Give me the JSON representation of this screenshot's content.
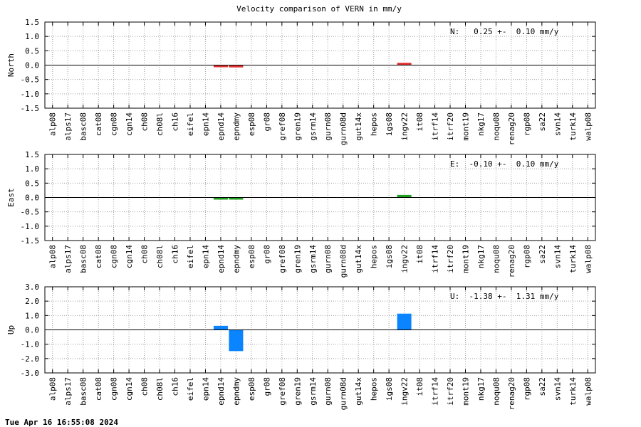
{
  "chart_data": {
    "type": "bar",
    "title": "Velocity comparison of VERN in mm/y",
    "categories": [
      "alp08",
      "alps17",
      "basc08",
      "cat08",
      "cgn08",
      "cgn14",
      "ch08",
      "ch08l",
      "ch16",
      "eifel",
      "epn14",
      "epnd14",
      "epndmy",
      "esp08",
      "gr08",
      "gref08",
      "gren19",
      "gsrm14",
      "gurn08",
      "gurn08d",
      "gut14x",
      "hepos",
      "igs08",
      "ingv22",
      "it08",
      "itrf14",
      "itrf20",
      "mont19",
      "nkg17",
      "noqu08",
      "renag20",
      "rgp08",
      "sa22",
      "svn14",
      "turk14",
      "walp08"
    ],
    "panels": [
      {
        "ylabel": "North",
        "color": "#e03030",
        "ylim": [
          -1.5,
          1.5
        ],
        "yticks": [
          "1.5",
          "1.0",
          "0.5",
          "0.0",
          "-0.5",
          "-1.0",
          "-1.5"
        ],
        "stat_text": "N:   0.25 +-  0.10 mm/y",
        "values": {
          "epnd14": -0.03,
          "epndmy": -0.08,
          "ingv22": 0.08
        }
      },
      {
        "ylabel": "East",
        "color": "#20a020",
        "ylim": [
          -1.5,
          1.5
        ],
        "yticks": [
          "1.5",
          "1.0",
          "0.5",
          "0.0",
          "-0.5",
          "-1.0",
          "-1.5"
        ],
        "stat_text": "E:  -0.10 +-  0.10 mm/y",
        "values": {
          "epnd14": -0.03,
          "epndmy": -0.06,
          "ingv22": 0.09
        }
      },
      {
        "ylabel": "Up",
        "color": "#0a84ff",
        "ylim": [
          -3.0,
          3.0
        ],
        "yticks": [
          "3.0",
          "2.0",
          "1.0",
          "0.0",
          "-1.0",
          "-2.0",
          "-3.0"
        ],
        "stat_text": "U:  -1.38 +-  1.31 mm/y",
        "values": {
          "epnd14": 0.28,
          "epndmy": -1.48,
          "ingv22": 1.13
        }
      }
    ],
    "grid": true
  },
  "footer": {
    "timestamp": "Tue Apr 16 16:55:08 2024"
  }
}
